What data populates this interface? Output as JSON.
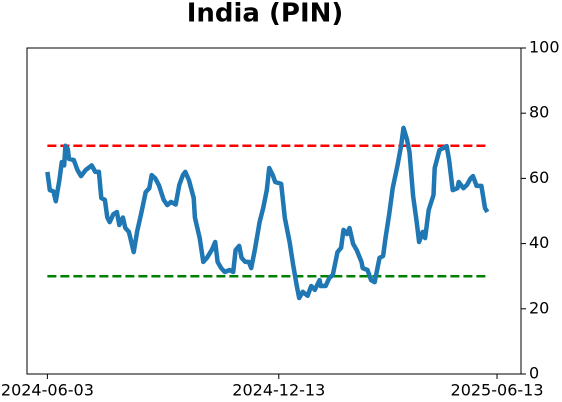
{
  "chart_data": {
    "type": "line",
    "title": "India (PIN)",
    "x": [
      "2024-06-03",
      "2024-06-05",
      "2024-06-08",
      "2024-06-10",
      "2024-06-13",
      "2024-06-15",
      "2024-06-17",
      "2024-06-18",
      "2024-06-20",
      "2024-06-21",
      "2024-06-25",
      "2024-06-28",
      "2024-07-01",
      "2024-07-05",
      "2024-07-10",
      "2024-07-13",
      "2024-07-16",
      "2024-07-18",
      "2024-07-21",
      "2024-07-23",
      "2024-07-25",
      "2024-07-28",
      "2024-07-31",
      "2024-08-02",
      "2024-08-05",
      "2024-08-07",
      "2024-08-10",
      "2024-08-14",
      "2024-08-17",
      "2024-08-20",
      "2024-08-24",
      "2024-08-27",
      "2024-08-29",
      "2024-09-01",
      "2024-09-04",
      "2024-09-08",
      "2024-09-11",
      "2024-09-14",
      "2024-09-18",
      "2024-09-21",
      "2024-09-24",
      "2024-09-26",
      "2024-09-29",
      "2024-10-03",
      "2024-10-04",
      "2024-10-08",
      "2024-10-11",
      "2024-10-14",
      "2024-10-18",
      "2024-10-21",
      "2024-10-23",
      "2024-10-26",
      "2024-10-29",
      "2024-11-02",
      "2024-11-05",
      "2024-11-07",
      "2024-11-10",
      "2024-11-12",
      "2024-11-15",
      "2024-11-18",
      "2024-11-20",
      "2024-11-23",
      "2024-11-27",
      "2024-11-30",
      "2024-12-03",
      "2024-12-05",
      "2024-12-08",
      "2024-12-10",
      "2024-12-15",
      "2024-12-18",
      "2024-12-22",
      "2024-12-25",
      "2024-12-28",
      "2024-12-30",
      "2025-01-02",
      "2025-01-06",
      "2025-01-09",
      "2025-01-12",
      "2025-01-16",
      "2025-01-17",
      "2025-01-21",
      "2025-01-24",
      "2025-01-27",
      "2025-01-31",
      "2025-02-03",
      "2025-02-05",
      "2025-02-08",
      "2025-02-10",
      "2025-02-13",
      "2025-02-16",
      "2025-02-20",
      "2025-02-21",
      "2025-02-25",
      "2025-02-28",
      "2025-03-03",
      "2025-03-05",
      "2025-03-07",
      "2025-03-10",
      "2025-03-12",
      "2025-03-15",
      "2025-03-18",
      "2025-03-22",
      "2025-03-25",
      "2025-03-27",
      "2025-03-30",
      "2025-04-01",
      "2025-04-04",
      "2025-04-07",
      "2025-04-09",
      "2025-04-12",
      "2025-04-14",
      "2025-04-17",
      "2025-04-21",
      "2025-04-22",
      "2025-04-26",
      "2025-04-29",
      "2025-05-02",
      "2025-05-04",
      "2025-05-07",
      "2025-05-11",
      "2025-05-12",
      "2025-05-16",
      "2025-05-19",
      "2025-05-22",
      "2025-05-24",
      "2025-05-27",
      "2025-05-31",
      "2025-06-03",
      "2025-06-05"
    ],
    "series": [
      {
        "color": "#1f77b4",
        "values": [
          62,
          56.4,
          56,
          53,
          59.5,
          65,
          64,
          70,
          69,
          66,
          65.6,
          62.6,
          60.7,
          62.6,
          64,
          62,
          62,
          54,
          53.4,
          48,
          46.6,
          49,
          49.7,
          45.7,
          48,
          44.8,
          43.6,
          37.4,
          44,
          48.8,
          55.8,
          57,
          61,
          60,
          57.9,
          53.4,
          51.8,
          52.8,
          52,
          58,
          61,
          62,
          59.5,
          54,
          48,
          41.7,
          34.4,
          35.6,
          38,
          40.5,
          34.4,
          32.5,
          31.3,
          31.9,
          31.3,
          38,
          39.3,
          35.6,
          34.4,
          34.4,
          32.5,
          38,
          46.6,
          50.9,
          56.4,
          63.2,
          61,
          58.9,
          58.3,
          47.9,
          40.5,
          33.4,
          27,
          23.3,
          25.2,
          24,
          27,
          25.8,
          28.8,
          27,
          27,
          29.4,
          30.4,
          37.4,
          38.7,
          44.2,
          42.9,
          44.8,
          39.9,
          38,
          34.4,
          32.5,
          31.9,
          28.8,
          28.2,
          31.9,
          35.6,
          36.2,
          41.7,
          48.8,
          57,
          64,
          70,
          75.5,
          71.8,
          68.1,
          54.6,
          46.6,
          40.5,
          43.6,
          41.7,
          50.3,
          54.9,
          63.2,
          68.7,
          69.3,
          69.9,
          65.6,
          56.4,
          57,
          58.9,
          57,
          58,
          60,
          60.7,
          57.7,
          57.7,
          50.9,
          49.7
        ]
      }
    ],
    "reference_lines": [
      {
        "value": 70,
        "color": "#ff0000"
      },
      {
        "value": 30,
        "color": "#008000"
      }
    ],
    "xlim": [
      "2024-05-17",
      "2025-07-03"
    ],
    "xticks": [
      "2024-06-03",
      "2024-12-13",
      "2025-06-13"
    ],
    "ylim": [
      0,
      100
    ],
    "yticks": [
      0,
      20,
      40,
      60,
      80,
      100
    ],
    "y_axis_side": "right"
  }
}
